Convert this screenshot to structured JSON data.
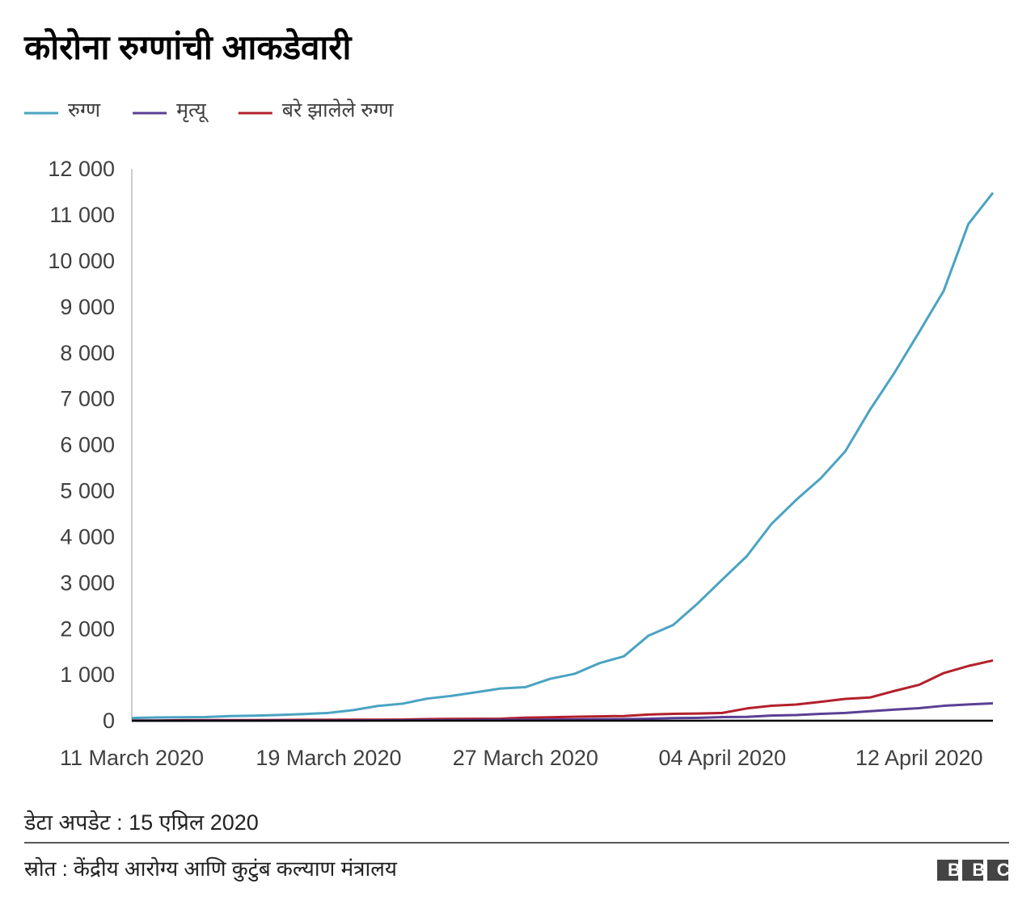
{
  "chart_data": {
    "type": "line",
    "title": "कोरोना रुग्णांची आकडेवारी",
    "x": [
      "2020-03-11",
      "2020-03-12",
      "2020-03-13",
      "2020-03-14",
      "2020-03-15",
      "2020-03-16",
      "2020-03-17",
      "2020-03-18",
      "2020-03-19",
      "2020-03-20",
      "2020-03-21",
      "2020-03-22",
      "2020-03-23",
      "2020-03-24",
      "2020-03-25",
      "2020-03-26",
      "2020-03-27",
      "2020-03-28",
      "2020-03-29",
      "2020-03-30",
      "2020-03-31",
      "2020-04-01",
      "2020-04-02",
      "2020-04-03",
      "2020-04-04",
      "2020-04-05",
      "2020-04-06",
      "2020-04-07",
      "2020-04-08",
      "2020-04-09",
      "2020-04-10",
      "2020-04-11",
      "2020-04-12",
      "2020-04-13",
      "2020-04-14",
      "2020-04-15"
    ],
    "series": [
      {
        "name": "रुग्ण",
        "color": "#4aa3c2",
        "values": [
          60,
          70,
          75,
          80,
          100,
          110,
          125,
          145,
          170,
          230,
          320,
          370,
          480,
          540,
          620,
          700,
          730,
          910,
          1020,
          1250,
          1400,
          1850,
          2080,
          2550,
          3070,
          3580,
          4280,
          4800,
          5270,
          5860,
          6760,
          7570,
          8450,
          9350,
          10800,
          11480
        ]
      },
      {
        "name": "मृत्यू",
        "color": "#5b3f94",
        "values": [
          1,
          1,
          1,
          2,
          2,
          3,
          4,
          4,
          4,
          4,
          7,
          7,
          10,
          10,
          13,
          17,
          20,
          24,
          27,
          32,
          35,
          41,
          56,
          62,
          79,
          83,
          111,
          124,
          149,
          169,
          206,
          242,
          273,
          324,
          353,
          377
        ]
      },
      {
        "name": "बरे झालेले रुग्ण",
        "color": "#b3202b",
        "values": [
          4,
          4,
          10,
          13,
          13,
          14,
          15,
          20,
          20,
          23,
          23,
          24,
          34,
          40,
          42,
          43,
          67,
          75,
          85,
          95,
          102,
          133,
          150,
          156,
          169,
          267,
          326,
          352,
          411,
          474,
          504,
          648,
          781,
          1036,
          1190,
          1310
        ]
      }
    ],
    "xlim": [
      "2020-03-11",
      "2020-04-15"
    ],
    "xticks": [
      {
        "value": "2020-03-11",
        "label": "11 March 2020"
      },
      {
        "value": "2020-03-19",
        "label": "19 March 2020"
      },
      {
        "value": "2020-03-27",
        "label": "27 March 2020"
      },
      {
        "value": "2020-04-04",
        "label": "04 April 2020"
      },
      {
        "value": "2020-04-12",
        "label": "12 April 2020"
      }
    ],
    "ylim": [
      0,
      12000
    ],
    "yticks": [
      0,
      {
        "value": 1000,
        "label": "1 000"
      },
      {
        "value": 2000,
        "label": "2 000"
      },
      {
        "value": 3000,
        "label": "3 000"
      },
      {
        "value": 4000,
        "label": "4 000"
      },
      {
        "value": 5000,
        "label": "5 000"
      },
      {
        "value": 6000,
        "label": "6 000"
      },
      {
        "value": 7000,
        "label": "7 000"
      },
      {
        "value": 8000,
        "label": "8 000"
      },
      {
        "value": 9000,
        "label": "9 000"
      },
      {
        "value": 10000,
        "label": "10 000"
      },
      {
        "value": 11000,
        "label": "11 000"
      },
      {
        "value": 12000,
        "label": "12 000"
      }
    ],
    "grid": false,
    "legend": "top-left",
    "note": "डेटा अपडेट : 15 एप्रिल 2020",
    "source": "स्रोत : केंद्रीय आरोग्य आणि कुटुंब कल्याण मंत्रालय",
    "logo": "BBC"
  }
}
